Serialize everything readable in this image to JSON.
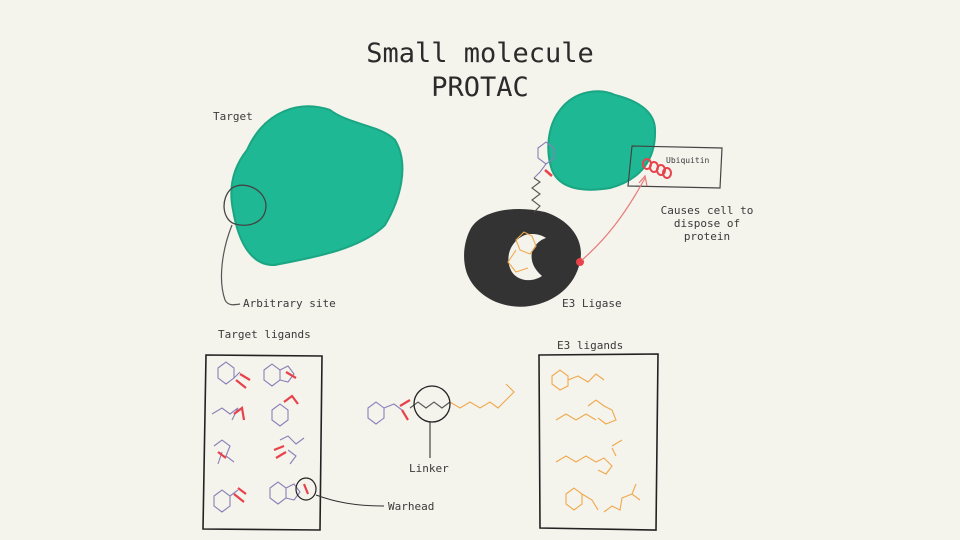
{
  "title": {
    "line1": "Small molecule",
    "line2": "PROTAC"
  },
  "labels": {
    "target": "Target",
    "arbitrary_site": "Arbitrary site",
    "ubiquitin": "Ubiquitin",
    "causes": "Causes cell to dispose of protein",
    "e3_ligase": "E3 Ligase",
    "target_ligands": "Target ligands",
    "e3_ligands": "E3 ligands",
    "linker": "Linker",
    "warhead": "Warhead"
  },
  "colors": {
    "background": "#f4f3ec",
    "protein_teal": "#1fb894",
    "ligase_dark": "#333333",
    "warhead_red": "#e8424b",
    "ligand_purple": "#8a80b8",
    "e3_ligand_orange": "#f0a84c",
    "arrow_red": "#e87a7a",
    "ink": "#3a3a3a"
  }
}
